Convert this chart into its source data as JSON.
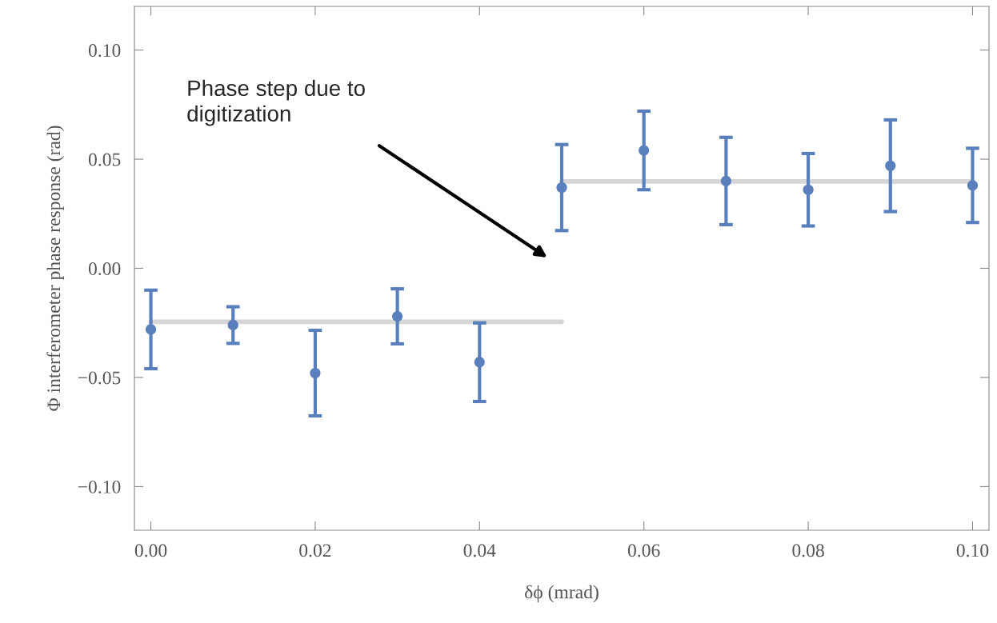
{
  "chart_data": {
    "type": "scatter",
    "xlabel": "δϕ (mrad)",
    "ylabel": "Φ interferometer phase response (rad)",
    "x": [
      0.0,
      0.01,
      0.02,
      0.03,
      0.04,
      0.05,
      0.06,
      0.07,
      0.08,
      0.09,
      0.1
    ],
    "series": [
      {
        "type": "line",
        "color": "#d6d6d6",
        "x": [
          0.0,
          0.05
        ],
        "values": [
          -0.0245,
          -0.0245
        ]
      },
      {
        "type": "line",
        "color": "#d6d6d6",
        "x": [
          0.05,
          0.1
        ],
        "values": [
          0.0398,
          0.0398
        ]
      },
      {
        "color": "#5a7fbd",
        "marker": "circle",
        "values": [
          -0.028,
          -0.026,
          -0.048,
          -0.022,
          -0.043,
          0.037,
          0.054,
          0.04,
          0.036,
          0.047,
          0.038
        ],
        "errors": [
          0.018,
          0.0084,
          0.0196,
          0.0126,
          0.018,
          0.0197,
          0.018,
          0.02,
          0.0166,
          0.021,
          0.017
        ]
      }
    ],
    "xlim": [
      -0.002,
      0.102
    ],
    "ylim": [
      -0.12,
      0.12
    ],
    "xticks": [
      {
        "value": 0.0,
        "label": "0.00"
      },
      {
        "value": 0.02,
        "label": "0.02"
      },
      {
        "value": 0.04,
        "label": "0.04"
      },
      {
        "value": 0.06,
        "label": "0.06"
      },
      {
        "value": 0.08,
        "label": "0.08"
      },
      {
        "value": 0.1,
        "label": "0.10"
      }
    ],
    "yticks": [
      {
        "value": -0.1,
        "label": "−0.10"
      },
      {
        "value": -0.05,
        "label": "−0.05"
      },
      {
        "value": 0.0,
        "label": "0.00"
      },
      {
        "value": 0.05,
        "label": "0.05"
      },
      {
        "value": 0.1,
        "label": "0.10"
      }
    ],
    "annotations": [
      "Phase step due to\ndigitization"
    ],
    "grid": false,
    "legend": false
  }
}
